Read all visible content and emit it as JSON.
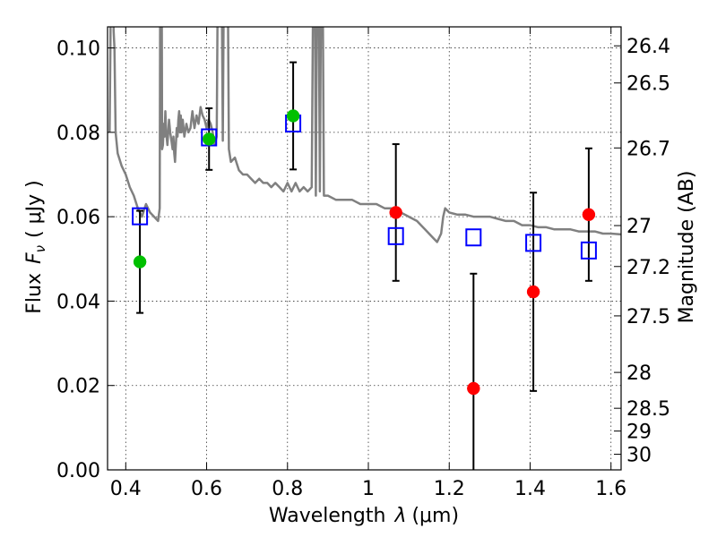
{
  "chart_data": {
    "type": "scatter",
    "xlabel": "Wavelength",
    "xlabel_symbol": "λ",
    "xlabel_unit": "(μm)",
    "ylabel": "Flux",
    "ylabel_symbol": "F",
    "ylabel_subscript": "ν",
    "ylabel_unit": "( μJy )",
    "y2label": "Magnitude (AB)",
    "xlim": [
      0.355,
      1.625
    ],
    "ylim": [
      0.0,
      0.105
    ],
    "grid": true,
    "x_ticks": [
      0.4,
      0.6,
      0.8,
      1.0,
      1.2,
      1.4,
      1.6
    ],
    "x_tick_labels": [
      "0.4",
      "0.6",
      "0.8",
      "1",
      "1.2",
      "1.4",
      "1.6"
    ],
    "y_ticks": [
      0.0,
      0.02,
      0.04,
      0.06,
      0.08,
      0.1
    ],
    "y_tick_labels": [
      "0.00",
      "0.02",
      "0.04",
      "0.06",
      "0.08",
      "0.10"
    ],
    "y2_ticks": [
      {
        "label": "26.4",
        "flux": 0.1005
      },
      {
        "label": "26.5",
        "flux": 0.0917
      },
      {
        "label": "26.7",
        "flux": 0.0763
      },
      {
        "label": "27",
        "flux": 0.0579
      },
      {
        "label": "27.2",
        "flux": 0.0482
      },
      {
        "label": "27.5",
        "flux": 0.0365
      },
      {
        "label": "28",
        "flux": 0.0231
      },
      {
        "label": "28.5",
        "flux": 0.0146
      },
      {
        "label": "29",
        "flux": 0.0092
      },
      {
        "label": "30",
        "flux": 0.0037
      }
    ],
    "series": [
      {
        "marker": "circle",
        "color": "#00c000",
        "points": [
          {
            "x": 0.435,
            "y": 0.0493,
            "yerr": 0.0121
          },
          {
            "x": 0.606,
            "y": 0.0784,
            "yerr": 0.0073
          },
          {
            "x": 0.814,
            "y": 0.0839,
            "yerr": 0.0127
          }
        ]
      },
      {
        "marker": "circle",
        "color": "#ff0000",
        "points": [
          {
            "x": 1.068,
            "y": 0.061,
            "yerr": 0.0162
          },
          {
            "x": 1.26,
            "y": 0.0193,
            "yerr": 0.0272
          },
          {
            "x": 1.408,
            "y": 0.0422,
            "yerr": 0.0235
          },
          {
            "x": 1.545,
            "y": 0.0605,
            "yerr": 0.0157
          }
        ]
      },
      {
        "marker": "open-square",
        "color": "#0000ff",
        "points": [
          {
            "x": 0.435,
            "y": 0.0601
          },
          {
            "x": 0.606,
            "y": 0.0788
          },
          {
            "x": 0.814,
            "y": 0.0821
          },
          {
            "x": 1.068,
            "y": 0.0554
          },
          {
            "x": 1.26,
            "y": 0.0551
          },
          {
            "x": 1.408,
            "y": 0.0538
          },
          {
            "x": 1.545,
            "y": 0.052
          }
        ]
      },
      {
        "type": "line",
        "color": "#808080",
        "x": [
          0.36,
          0.362,
          0.365,
          0.368,
          0.37,
          0.372,
          0.375,
          0.38,
          0.39,
          0.4,
          0.41,
          0.42,
          0.43,
          0.44,
          0.45,
          0.46,
          0.47,
          0.48,
          0.484,
          0.486,
          0.488,
          0.49,
          0.492,
          0.494,
          0.496,
          0.498,
          0.5,
          0.503,
          0.507,
          0.51,
          0.513,
          0.516,
          0.518,
          0.52,
          0.522,
          0.524,
          0.526,
          0.528,
          0.53,
          0.532,
          0.534,
          0.536,
          0.538,
          0.541,
          0.545,
          0.55,
          0.555,
          0.56,
          0.565,
          0.57,
          0.575,
          0.58,
          0.585,
          0.59,
          0.595,
          0.6,
          0.605,
          0.61,
          0.615,
          0.62,
          0.625,
          0.63,
          0.635,
          0.64,
          0.645,
          0.65,
          0.655,
          0.66,
          0.67,
          0.68,
          0.69,
          0.7,
          0.71,
          0.72,
          0.73,
          0.74,
          0.75,
          0.76,
          0.77,
          0.78,
          0.79,
          0.8,
          0.81,
          0.82,
          0.83,
          0.84,
          0.85,
          0.86,
          0.866,
          0.87,
          0.875,
          0.88,
          0.885,
          0.89,
          0.9,
          0.92,
          0.94,
          0.96,
          0.98,
          1.0,
          1.02,
          1.04,
          1.06,
          1.08,
          1.1,
          1.12,
          1.14,
          1.15,
          1.16,
          1.17,
          1.18,
          1.185,
          1.19,
          1.2,
          1.22,
          1.24,
          1.26,
          1.28,
          1.3,
          1.32,
          1.34,
          1.36,
          1.38,
          1.4,
          1.42,
          1.44,
          1.46,
          1.48,
          1.5,
          1.52,
          1.54,
          1.56,
          1.58,
          1.6,
          1.625
        ],
        "y": [
          0.08,
          0.1,
          0.15,
          0.15,
          0.104,
          0.1,
          0.08,
          0.075,
          0.072,
          0.07,
          0.067,
          0.065,
          0.062,
          0.06,
          0.063,
          0.061,
          0.06,
          0.059,
          0.062,
          0.15,
          0.15,
          0.076,
          0.077,
          0.082,
          0.079,
          0.085,
          0.08,
          0.077,
          0.083,
          0.08,
          0.078,
          0.076,
          0.079,
          0.075,
          0.073,
          0.077,
          0.081,
          0.079,
          0.083,
          0.085,
          0.08,
          0.084,
          0.08,
          0.083,
          0.079,
          0.082,
          0.08,
          0.081,
          0.085,
          0.081,
          0.084,
          0.082,
          0.086,
          0.084,
          0.083,
          0.081,
          0.083,
          0.082,
          0.08,
          0.077,
          0.079,
          0.15,
          0.15,
          0.078,
          0.15,
          0.15,
          0.076,
          0.073,
          0.074,
          0.071,
          0.07,
          0.07,
          0.069,
          0.068,
          0.069,
          0.068,
          0.068,
          0.067,
          0.068,
          0.067,
          0.066,
          0.068,
          0.066,
          0.068,
          0.066,
          0.067,
          0.066,
          0.067,
          0.15,
          0.065,
          0.15,
          0.066,
          0.15,
          0.065,
          0.065,
          0.064,
          0.064,
          0.064,
          0.063,
          0.063,
          0.063,
          0.062,
          0.062,
          0.061,
          0.06,
          0.059,
          0.057,
          0.056,
          0.055,
          0.054,
          0.056,
          0.06,
          0.062,
          0.061,
          0.0605,
          0.0605,
          0.06,
          0.06,
          0.06,
          0.0595,
          0.059,
          0.059,
          0.058,
          0.058,
          0.0575,
          0.0575,
          0.057,
          0.057,
          0.057,
          0.0565,
          0.0565,
          0.0565,
          0.056,
          0.056,
          0.0558
        ]
      }
    ]
  }
}
